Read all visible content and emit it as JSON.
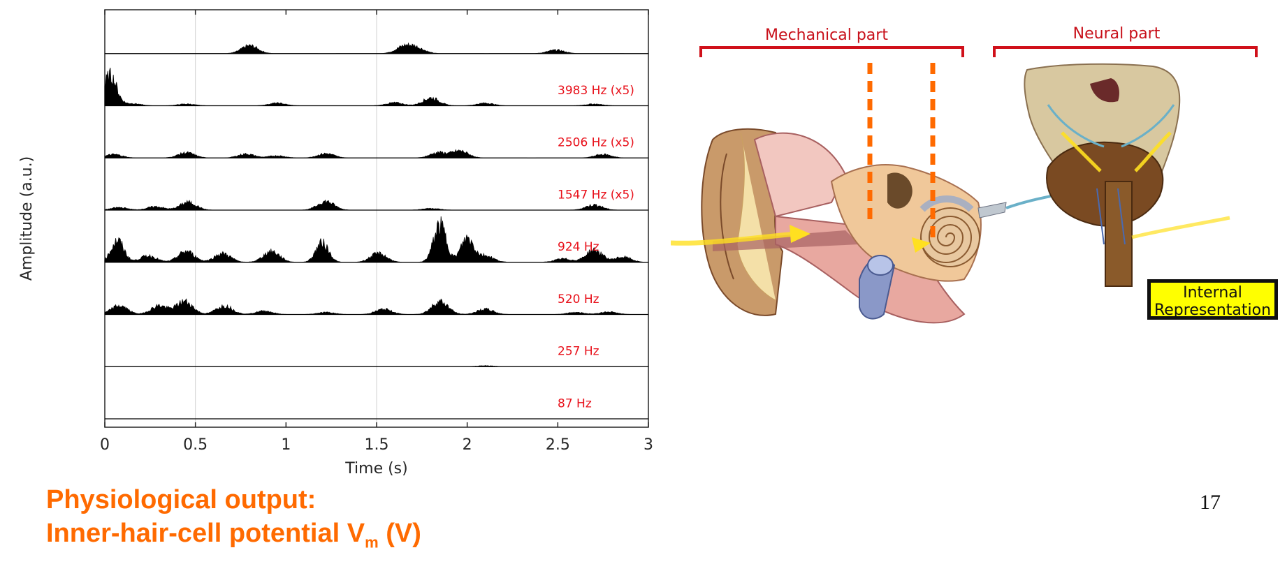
{
  "chart_data": {
    "type": "area",
    "xlabel": "Time (s)",
    "ylabel": "Amplitude (a.u.)",
    "xlim": [
      0,
      3
    ],
    "xticks": [
      "0",
      "0.5",
      "1",
      "1.5",
      "2",
      "2.5",
      "3"
    ],
    "grid": "vertical at 0.5 and 1.5",
    "channels": [
      {
        "label": "",
        "peaks": [
          [
            0.8,
            0.18
          ],
          [
            1.65,
            0.15
          ],
          [
            1.72,
            0.12
          ],
          [
            2.49,
            0.08
          ]
        ]
      },
      {
        "label": "3983 Hz (x5)",
        "peaks": [
          [
            0.03,
            0.7
          ],
          [
            0.15,
            0.05
          ],
          [
            0.45,
            0.04
          ],
          [
            0.95,
            0.06
          ],
          [
            1.6,
            0.07
          ],
          [
            1.8,
            0.18
          ],
          [
            2.1,
            0.06
          ],
          [
            2.7,
            0.04
          ]
        ]
      },
      {
        "label": "2506 Hz (x5)",
        "peaks": [
          [
            0.05,
            0.08
          ],
          [
            0.45,
            0.12
          ],
          [
            0.78,
            0.09
          ],
          [
            0.95,
            0.05
          ],
          [
            1.22,
            0.1
          ],
          [
            1.84,
            0.12
          ],
          [
            1.96,
            0.16
          ],
          [
            2.75,
            0.08
          ]
        ]
      },
      {
        "label": "1547 Hz (x5)",
        "peaks": [
          [
            0.08,
            0.06
          ],
          [
            0.28,
            0.08
          ],
          [
            0.46,
            0.18
          ],
          [
            1.22,
            0.2
          ],
          [
            1.8,
            0.04
          ],
          [
            2.7,
            0.12
          ]
        ]
      },
      {
        "label": "924 Hz",
        "peaks": [
          [
            0.07,
            0.5
          ],
          [
            0.24,
            0.15
          ],
          [
            0.45,
            0.25
          ],
          [
            0.65,
            0.2
          ],
          [
            0.92,
            0.25
          ],
          [
            1.2,
            0.45
          ],
          [
            1.51,
            0.2
          ],
          [
            1.85,
            0.85
          ],
          [
            2.0,
            0.55
          ],
          [
            2.1,
            0.15
          ],
          [
            2.53,
            0.08
          ],
          [
            2.7,
            0.28
          ],
          [
            2.86,
            0.12
          ]
        ]
      },
      {
        "label": "520 Hz",
        "peaks": [
          [
            0.08,
            0.2
          ],
          [
            0.3,
            0.2
          ],
          [
            0.44,
            0.3
          ],
          [
            0.66,
            0.2
          ],
          [
            0.88,
            0.08
          ],
          [
            1.22,
            0.05
          ],
          [
            1.54,
            0.12
          ],
          [
            1.85,
            0.3
          ],
          [
            2.1,
            0.12
          ],
          [
            2.6,
            0.05
          ],
          [
            2.78,
            0.06
          ]
        ]
      },
      {
        "label": "257 Hz",
        "peaks": [
          [
            2.1,
            0.02
          ]
        ]
      },
      {
        "label": "87 Hz",
        "peaks": []
      }
    ]
  },
  "diagram": {
    "mechanical_label": "Mechanical part",
    "neural_label": "Neural part",
    "ir_line1": "Internal",
    "ir_line2": "Representation"
  },
  "caption": {
    "line1": "Physiological output:",
    "line2_main": "Inner-hair-cell potential V",
    "line2_sub": "m",
    "line2_tail": " (V)"
  },
  "page_number": "17"
}
